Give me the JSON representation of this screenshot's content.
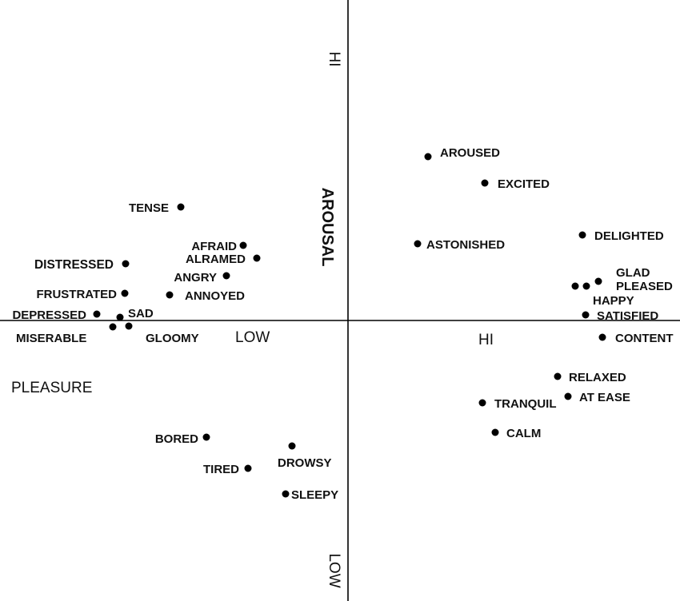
{
  "axes": {
    "arousal_label": "AROUSAL",
    "arousal_hi": "HI",
    "arousal_low": "LOW",
    "pleasure_label": "PLEASURE",
    "pleasure_low": "LOW",
    "pleasure_hi": "HI"
  },
  "words": [
    {
      "key": "aroused",
      "text": "AROUSED"
    },
    {
      "key": "excited",
      "text": "EXCITED"
    },
    {
      "key": "delighted",
      "text": "DELIGHTED"
    },
    {
      "key": "astonished",
      "text": "ASTONISHED"
    },
    {
      "key": "glad",
      "text": "GLAD"
    },
    {
      "key": "pleased",
      "text": "PLEASED"
    },
    {
      "key": "happy",
      "text": "HAPPY"
    },
    {
      "key": "satisfied",
      "text": "SATISFIED"
    },
    {
      "key": "content",
      "text": "CONTENT"
    },
    {
      "key": "relaxed",
      "text": "RELAXED"
    },
    {
      "key": "at-ease",
      "text": "AT EASE"
    },
    {
      "key": "tranquil",
      "text": "TRANQUIL"
    },
    {
      "key": "calm",
      "text": "CALM"
    },
    {
      "key": "tense",
      "text": "TENSE"
    },
    {
      "key": "afraid",
      "text": "AFRAID"
    },
    {
      "key": "alarmed",
      "text": "ALRAMED"
    },
    {
      "key": "distressed",
      "text": "DISTRESSED"
    },
    {
      "key": "angry",
      "text": "ANGRY"
    },
    {
      "key": "frustrated",
      "text": "FRUSTRATED"
    },
    {
      "key": "annoyed",
      "text": "ANNOYED"
    },
    {
      "key": "depressed",
      "text": "DEPRESSED"
    },
    {
      "key": "sad",
      "text": "SAD"
    },
    {
      "key": "miserable",
      "text": "MISERABLE"
    },
    {
      "key": "gloomy",
      "text": "GLOOMY"
    },
    {
      "key": "bored",
      "text": "BORED"
    },
    {
      "key": "tired",
      "text": "TIRED"
    },
    {
      "key": "drowsy",
      "text": "DROWSY"
    },
    {
      "key": "sleepy",
      "text": "SLEEPY"
    }
  ]
}
